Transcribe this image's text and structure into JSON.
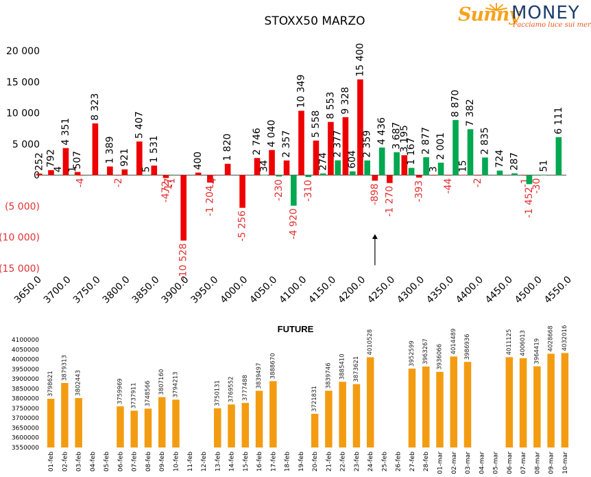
{
  "brand": {
    "name_part1": "Sunny",
    "name_part2": "MONEY",
    "tagline": "Facciamo luce sui mercati",
    "colors": {
      "sun": "#f7a21b",
      "money": "#1d3d6e",
      "tagline": "#e8541b"
    }
  },
  "chart_data": [
    {
      "type": "bar",
      "title": "STOXX50 MARZO",
      "xlabel": "",
      "ylabel": "",
      "ylim": [
        -15000,
        20000
      ],
      "yticks": [
        20000,
        15000,
        10000,
        5000,
        0,
        -5000,
        -10000,
        -15000
      ],
      "ytick_labels": [
        "20 000",
        "15 000",
        "10 000",
        "5 000",
        "0",
        "(5 000)",
        "(10 000)",
        "(15 000)"
      ],
      "xlim": [
        3650,
        4550
      ],
      "xticks": [
        3650,
        3700,
        3750,
        3800,
        3850,
        3900,
        3950,
        4000,
        4050,
        4100,
        4150,
        4200,
        4250,
        4300,
        4350,
        4400,
        4450,
        4500,
        4550
      ],
      "xtick_labels": [
        "3650.0",
        "3700.0",
        "3750.0",
        "3800.0",
        "3850.0",
        "3900.0",
        "3950.0",
        "4000.0",
        "4050.0",
        "4100.0",
        "4150.0",
        "4200.0",
        "4250.0",
        "4300.0",
        "4350.0",
        "4400.0",
        "4450.0",
        "4500.0",
        "4550.0"
      ],
      "grid": false,
      "legend": "none",
      "colors": {
        "series_a": "#ee0000",
        "series_b": "#00a84f",
        "negative_label": "#e03030",
        "label": "#000000"
      },
      "annotation": {
        "type": "arrow",
        "x": 4225,
        "from_y": -14500,
        "to_y": -9500
      },
      "series": [
        {
          "color": "#ee0000",
          "points": [
            {
              "x": 3655,
              "y": 252,
              "label": "252"
            },
            {
              "x": 3675,
              "y": 792,
              "label": "792"
            },
            {
              "x": 3700,
              "y": 4351,
              "label": "4 351"
            },
            {
              "x": 3720,
              "y": 507,
              "label": "507"
            },
            {
              "x": 3725,
              "y": -4,
              "label": "-4"
            },
            {
              "x": 3750,
              "y": 8323,
              "label": "8 323"
            },
            {
              "x": 3775,
              "y": 1389,
              "label": "1 389"
            },
            {
              "x": 3790,
              "y": -2,
              "label": "-2"
            },
            {
              "x": 3800,
              "y": 921,
              "label": "921"
            },
            {
              "x": 3825,
              "y": 5407,
              "label": "5 407"
            },
            {
              "x": 3850,
              "y": 1531,
              "label": "1 531"
            },
            {
              "x": 3870,
              "y": -472,
              "label": "-472"
            },
            {
              "x": 3875,
              "y": -17,
              "label": "-17"
            },
            {
              "x": 3900,
              "y": -10528,
              "label": "-10 528"
            },
            {
              "x": 3925,
              "y": 400,
              "label": "400"
            },
            {
              "x": 3945,
              "y": -1204,
              "label": "-1 204"
            },
            {
              "x": 3950,
              "y": -4,
              "label": "-4"
            },
            {
              "x": 3975,
              "y": 1820,
              "label": "1 820"
            },
            {
              "x": 4000,
              "y": -5256,
              "label": "-5 256"
            },
            {
              "x": 4025,
              "y": 2746,
              "label": "2 746"
            },
            {
              "x": 4050,
              "y": 4040,
              "label": "4 040"
            },
            {
              "x": 4075,
              "y": 2357,
              "label": "2 357"
            },
            {
              "x": 4100,
              "y": 10349,
              "label": "10 349"
            },
            {
              "x": 4125,
              "y": 5558,
              "label": "5 558"
            },
            {
              "x": 4150,
              "y": 8553,
              "label": "8 553"
            },
            {
              "x": 4175,
              "y": 9328,
              "label": "9 328"
            },
            {
              "x": 4200,
              "y": 15400,
              "label": "15 400"
            },
            {
              "x": 4225,
              "y": -898,
              "label": "-898"
            },
            {
              "x": 4250,
              "y": -1270,
              "label": "-1 270"
            },
            {
              "x": 4275,
              "y": 3195,
              "label": "3 195"
            },
            {
              "x": 4300,
              "y": -393,
              "label": "-393"
            },
            {
              "x": 4325,
              "y": 3,
              "label": "3"
            },
            {
              "x": 4350,
              "y": -44,
              "label": "-44"
            },
            {
              "x": 4375,
              "y": 15,
              "label": "15"
            },
            {
              "x": 4400,
              "y": -2,
              "label": "-2"
            },
            {
              "x": 4480,
              "y": -1,
              "label": "-1"
            }
          ]
        },
        {
          "color": "#00a84f",
          "points": [
            {
              "x": 3687,
              "y": 4,
              "label": "4"
            },
            {
              "x": 3712,
              "y": 1,
              "label": "1"
            },
            {
              "x": 3837,
              "y": 5,
              "label": "5"
            },
            {
              "x": 3880,
              "y": -1,
              "label": "-1"
            },
            {
              "x": 4037,
              "y": 34,
              "label": "34"
            },
            {
              "x": 4062,
              "y": -230,
              "label": "-230"
            },
            {
              "x": 4087,
              "y": -4920,
              "label": "-4 920"
            },
            {
              "x": 4112,
              "y": -310,
              "label": "-310"
            },
            {
              "x": 4137,
              "y": 274,
              "label": "274"
            },
            {
              "x": 4162,
              "y": 2377,
              "label": "2 377"
            },
            {
              "x": 4187,
              "y": 604,
              "label": "604"
            },
            {
              "x": 4212,
              "y": 2359,
              "label": "2 359"
            },
            {
              "x": 4237,
              "y": 4436,
              "label": "4 436"
            },
            {
              "x": 4262,
              "y": 3687,
              "label": "3 687"
            },
            {
              "x": 4287,
              "y": 1167,
              "label": "1 167"
            },
            {
              "x": 4312,
              "y": 2877,
              "label": "2 877"
            },
            {
              "x": 4337,
              "y": 2001,
              "label": "2 001"
            },
            {
              "x": 4362,
              "y": 8870,
              "label": "8 870"
            },
            {
              "x": 4387,
              "y": 7382,
              "label": "7 382"
            },
            {
              "x": 4412,
              "y": 2835,
              "label": "2 835"
            },
            {
              "x": 4437,
              "y": 724,
              "label": "724"
            },
            {
              "x": 4462,
              "y": 287,
              "label": "287"
            },
            {
              "x": 4487,
              "y": -1452,
              "label": "-1 452"
            },
            {
              "x": 4500,
              "y": -30,
              "label": "-30"
            },
            {
              "x": 4512,
              "y": 51,
              "label": "51"
            },
            {
              "x": 4537,
              "y": 6111,
              "label": "6 111"
            }
          ]
        }
      ]
    },
    {
      "type": "bar",
      "title": "FUTURE",
      "xlabel": "",
      "ylabel": "",
      "ylim": [
        3550000,
        4100000
      ],
      "yticks": [
        4100000,
        4050000,
        4000000,
        3950000,
        3900000,
        3850000,
        3800000,
        3750000,
        3700000,
        3650000,
        3600000,
        3550000
      ],
      "ytick_labels": [
        "4100000",
        "4050000",
        "4000000",
        "3950000",
        "3900000",
        "3850000",
        "3800000",
        "3750000",
        "3700000",
        "3650000",
        "3600000",
        "3550000"
      ],
      "grid": false,
      "legend": "none",
      "color": "#f39c12",
      "categories": [
        "01-feb",
        "02-feb",
        "03-feb",
        "04-feb",
        "05-feb",
        "06-feb",
        "07-feb",
        "08-feb",
        "09-feb",
        "10-feb",
        "11-feb",
        "12-feb",
        "13-feb",
        "14-feb",
        "15-feb",
        "16-feb",
        "17-feb",
        "18-feb",
        "19-feb",
        "20-feb",
        "21-feb",
        "22-feb",
        "23-feb",
        "24-feb",
        "25-feb",
        "26-feb",
        "27-feb",
        "28-feb",
        "01-mar",
        "02-mar",
        "03-mar",
        "04-mar",
        "05-mar",
        "06-mar",
        "07-mar",
        "08-mar",
        "09-mar",
        "10-mar"
      ],
      "values": [
        3798621,
        3879313,
        3802443,
        null,
        null,
        3759969,
        3737911,
        3748566,
        3807160,
        3794213,
        null,
        null,
        3750131,
        3769552,
        3777488,
        3839497,
        3888670,
        null,
        null,
        3721831,
        3839746,
        3885410,
        3873621,
        4010528,
        null,
        null,
        3952599,
        3963267,
        3936066,
        4014489,
        3986936,
        null,
        null,
        4011125,
        4006013,
        3964419,
        4028668,
        4032016
      ],
      "value_labels": [
        "3798621",
        "3879313",
        "3802443",
        "",
        "",
        "3759969",
        "3737911",
        "3748566",
        "3807160",
        "3794213",
        "",
        "",
        "3750131",
        "3769552",
        "3777488",
        "3839497",
        "3888670",
        "",
        "",
        "3721831",
        "3839746",
        "3885410",
        "3873621",
        "4010528",
        "",
        "",
        "3952599",
        "3963267",
        "3936066",
        "4014489",
        "3986936",
        "",
        "",
        "4011125",
        "4006013",
        "3964419",
        "4028668",
        "4032016"
      ]
    }
  ]
}
